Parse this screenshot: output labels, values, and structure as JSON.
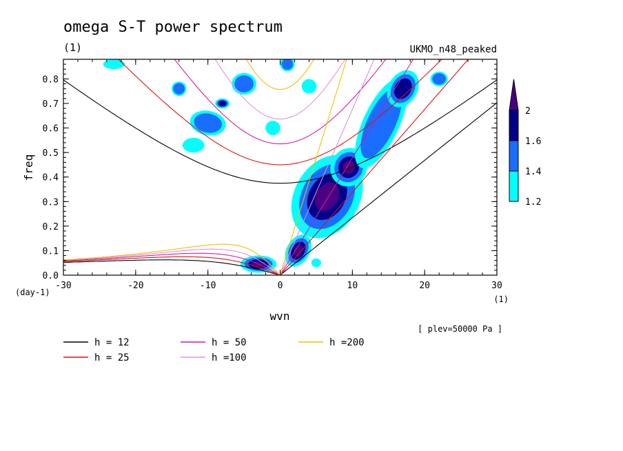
{
  "chart_data": {
    "type": "heatmap",
    "title": "omega S-T power spectrum",
    "subtitle_left": "(1)",
    "subtitle_right": "UKMO_n48_peaked",
    "xlabel": "wvn",
    "ylabel": "freq",
    "x_unit": "(1)",
    "y_unit": "(day-1)",
    "annotation": "[ plev=50000 Pa ]",
    "xlim": [
      -30,
      30
    ],
    "ylim": [
      0,
      0.88
    ],
    "xticks": [
      "-30",
      "-20",
      "-10",
      "0",
      "10",
      "20",
      "30"
    ],
    "yticks": [
      "0.0",
      "0.1",
      "0.2",
      "0.3",
      "0.4",
      "0.5",
      "0.6",
      "0.7",
      "0.8"
    ],
    "colorbar": {
      "levels": [
        "1.2",
        "1.4",
        "1.6",
        "2"
      ],
      "colors": [
        "#00ffff",
        "#1a6dff",
        "#00008b",
        "#4b0082"
      ]
    },
    "dispersion_curves": [
      {
        "name": "h = 12",
        "color": "#000000"
      },
      {
        "name": "h = 25",
        "color": "#e01010"
      },
      {
        "name": "h = 50",
        "color": "#d01aa0"
      },
      {
        "name": "h =100",
        "color": "#e090e0"
      },
      {
        "name": "h =200",
        "color": "#f0c000"
      }
    ],
    "power_regions": [
      {
        "x": 6.5,
        "y": 0.32,
        "sx": 4.5,
        "sy": 0.18,
        "angle": -60,
        "level": 3
      },
      {
        "x": 9.5,
        "y": 0.44,
        "sx": 2.5,
        "sy": 0.08,
        "angle": -60,
        "level": 3
      },
      {
        "x": 2.5,
        "y": 0.1,
        "sx": 1.6,
        "sy": 0.07,
        "angle": -60,
        "level": 3
      },
      {
        "x": -3,
        "y": 0.045,
        "sx": 2.5,
        "sy": 0.035,
        "angle": 0,
        "level": 3
      },
      {
        "x": 14,
        "y": 0.62,
        "sx": 2.5,
        "sy": 0.2,
        "angle": -65,
        "level": 1
      },
      {
        "x": 17,
        "y": 0.76,
        "sx": 2,
        "sy": 0.08,
        "angle": -60,
        "level": 2
      },
      {
        "x": -10,
        "y": 0.62,
        "sx": 2.5,
        "sy": 0.05,
        "angle": 10,
        "level": 1
      },
      {
        "x": -12,
        "y": 0.53,
        "sx": 1.5,
        "sy": 0.03,
        "angle": 0,
        "level": 0
      },
      {
        "x": -5,
        "y": 0.78,
        "sx": 1.5,
        "sy": 0.05,
        "angle": 0,
        "level": 1
      },
      {
        "x": -8,
        "y": 0.7,
        "sx": 1,
        "sy": 0.02,
        "angle": 0,
        "level": 2
      },
      {
        "x": -1,
        "y": 0.6,
        "sx": 1,
        "sy": 0.03,
        "angle": 0,
        "level": 0
      },
      {
        "x": 4,
        "y": 0.77,
        "sx": 1,
        "sy": 0.03,
        "angle": 0,
        "level": 0
      },
      {
        "x": -14,
        "y": 0.76,
        "sx": 1,
        "sy": 0.03,
        "angle": 0,
        "level": 1
      },
      {
        "x": -23,
        "y": 0.86,
        "sx": 1.5,
        "sy": 0.02,
        "angle": 0,
        "level": 0
      },
      {
        "x": 22,
        "y": 0.8,
        "sx": 1.2,
        "sy": 0.03,
        "angle": 0,
        "level": 1
      },
      {
        "x": 1,
        "y": 0.86,
        "sx": 1,
        "sy": 0.03,
        "angle": 0,
        "level": 1
      },
      {
        "x": 5,
        "y": 0.05,
        "sx": 0.6,
        "sy": 0.02,
        "angle": 0,
        "level": 0
      }
    ]
  },
  "legend": [
    {
      "label": "h = 12",
      "color": "#000000"
    },
    {
      "label": "h = 25",
      "color": "#e01010"
    },
    {
      "label": "h = 50",
      "color": "#d01aa0"
    },
    {
      "label": "h =100",
      "color": "#e090e0"
    },
    {
      "label": "h =200",
      "color": "#f0c000"
    }
  ]
}
